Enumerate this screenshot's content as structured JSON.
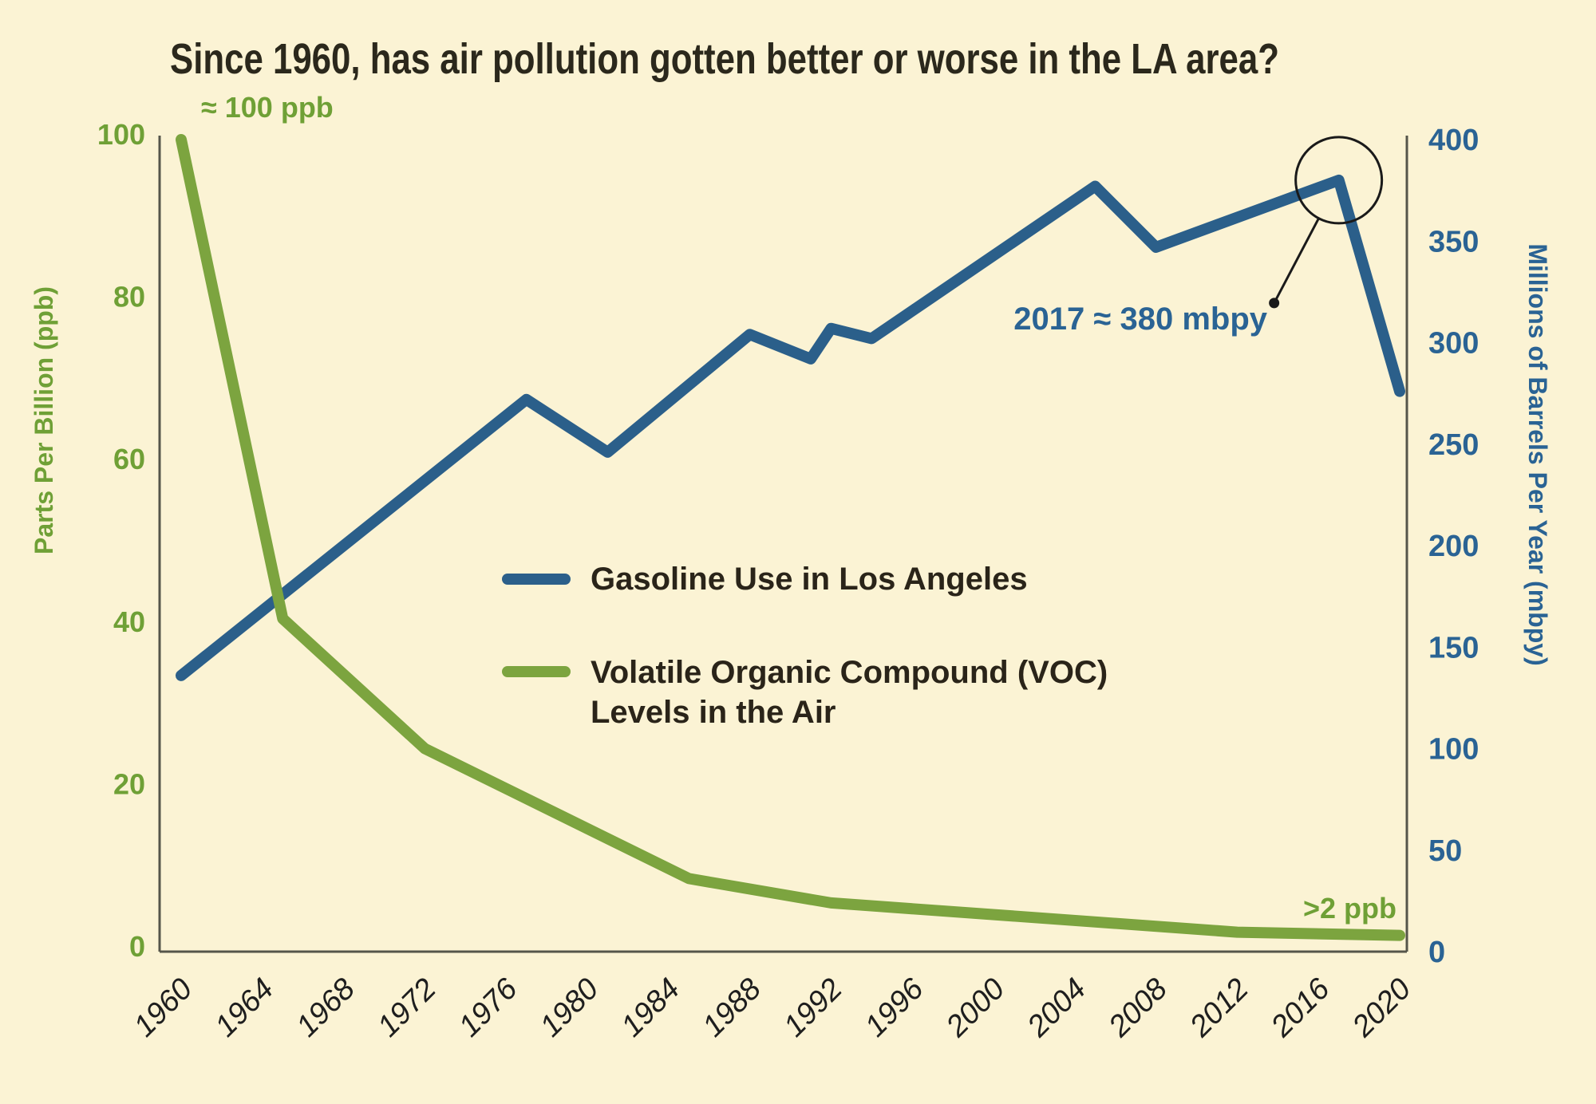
{
  "title": "Since 1960, has air pollution gotten better or worse in the LA area?",
  "legend": {
    "gasoline_label": "Gasoline Use in Los Angeles",
    "voc_label_line1": "Volatile Organic Compound (VOC)",
    "voc_label_line2": "Levels in the Air"
  },
  "colors": {
    "background": "#FBF3D4",
    "blue": "#2B5F8A",
    "blue_text": "#2A6394",
    "green": "#7CA43F",
    "green_text": "#6FA036",
    "ink": "#2B281C",
    "axis": "#55554A",
    "tick": "#1E1E1E",
    "annotation": "#1A1A1A"
  },
  "chart_data": {
    "type": "line",
    "title": "Since 1960, has air pollution gotten better or worse in the LA area?",
    "x_range": [
      1960,
      2020
    ],
    "x_ticks": [
      1960,
      1964,
      1968,
      1972,
      1976,
      1980,
      1984,
      1988,
      1992,
      1996,
      2000,
      2004,
      2008,
      2012,
      2016,
      2020
    ],
    "grid": false,
    "legend_position": "center",
    "left_axis": {
      "label": "Parts Per Billion (ppb)",
      "range": [
        0,
        100
      ],
      "ticks": [
        0,
        20,
        40,
        60,
        80,
        100
      ]
    },
    "right_axis": {
      "label": "Millions of Barrels Per Year (mbpy)",
      "range": [
        0,
        400
      ],
      "ticks": [
        0,
        50,
        100,
        150,
        200,
        250,
        300,
        350,
        400
      ]
    },
    "series": [
      {
        "name": "Gasoline Use in Los Angeles",
        "axis": "right",
        "unit": "mbpy",
        "color": "#2B5F8A",
        "points": [
          [
            1960,
            136
          ],
          [
            1977,
            272
          ],
          [
            1981,
            246
          ],
          [
            1988,
            304
          ],
          [
            1991,
            292
          ],
          [
            1992,
            307
          ],
          [
            1994,
            302
          ],
          [
            2005,
            377
          ],
          [
            2008,
            347
          ],
          [
            2017,
            380
          ],
          [
            2020,
            276
          ]
        ]
      },
      {
        "name": "Volatile Organic Compound (VOC) Levels in the Air",
        "axis": "left",
        "unit": "ppb",
        "color": "#7CA43F",
        "points": [
          [
            1960,
            100
          ],
          [
            1965,
            41
          ],
          [
            1972,
            25
          ],
          [
            1985,
            9
          ],
          [
            1992,
            6
          ],
          [
            2012,
            2.4
          ],
          [
            2020,
            2
          ]
        ]
      }
    ],
    "annotations": [
      {
        "id": "voc-start",
        "text": "≈ 100 ppb",
        "series": "VOC",
        "year": 1960,
        "value_ppb": 100
      },
      {
        "id": "gasoline-peak",
        "text": "2017 ≈ 380 mbpy",
        "series": "Gasoline",
        "year": 2017,
        "value_mbpy": 380
      },
      {
        "id": "voc-end",
        "text": ">2 ppb",
        "series": "VOC",
        "year": 2020,
        "value_ppb": 2
      }
    ]
  }
}
